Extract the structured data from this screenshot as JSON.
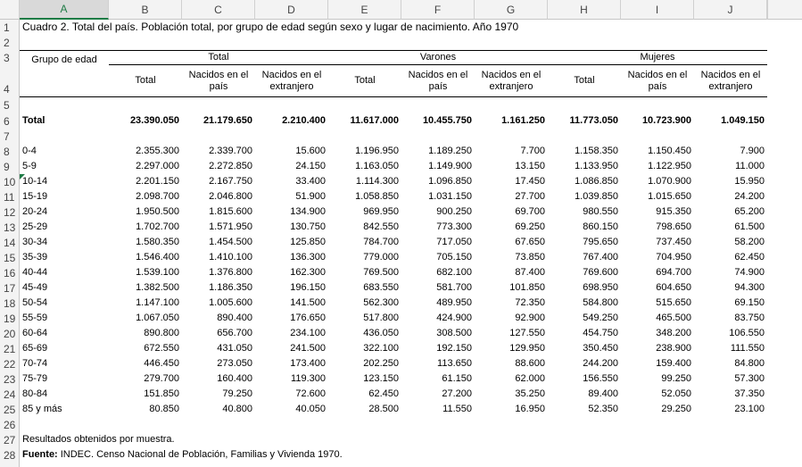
{
  "column_letters": [
    "A",
    "B",
    "C",
    "D",
    "E",
    "F",
    "G",
    "H",
    "I",
    "J"
  ],
  "row_numbers": [
    1,
    2,
    3,
    4,
    5,
    6,
    7,
    8,
    9,
    10,
    11,
    12,
    13,
    14,
    15,
    16,
    17,
    18,
    19,
    20,
    21,
    22,
    23,
    24,
    25,
    26,
    27,
    28
  ],
  "title": "Cuadro 2. Total del país. Población total, por grupo de edad según sexo y lugar de nacimiento. Año 1970",
  "table": {
    "row_header_label": "Grupo de edad",
    "groups": [
      "Total",
      "Varones",
      "Mujeres"
    ],
    "subheaders": [
      "Total",
      "Nacidos en el país",
      "Nacidos en el extranjero",
      "Total",
      "Nacidos en el país",
      "Nacidos en el extranjero",
      "Total",
      "Nacidos en el país",
      "Nacidos en el extranjero"
    ],
    "total_row": [
      "Total",
      "23.390.050",
      "21.179.650",
      "2.210.400",
      "11.617.000",
      "10.455.750",
      "1.161.250",
      "11.773.050",
      "10.723.900",
      "1.049.150"
    ],
    "rows": [
      [
        "0-4",
        "2.355.300",
        "2.339.700",
        "15.600",
        "1.196.950",
        "1.189.250",
        "7.700",
        "1.158.350",
        "1.150.450",
        "7.900"
      ],
      [
        "5-9",
        "2.297.000",
        "2.272.850",
        "24.150",
        "1.163.050",
        "1.149.900",
        "13.150",
        "1.133.950",
        "1.122.950",
        "11.000"
      ],
      [
        "10-14",
        "2.201.150",
        "2.167.750",
        "33.400",
        "1.114.300",
        "1.096.850",
        "17.450",
        "1.086.850",
        "1.070.900",
        "15.950"
      ],
      [
        "15-19",
        "2.098.700",
        "2.046.800",
        "51.900",
        "1.058.850",
        "1.031.150",
        "27.700",
        "1.039.850",
        "1.015.650",
        "24.200"
      ],
      [
        "20-24",
        "1.950.500",
        "1.815.600",
        "134.900",
        "969.950",
        "900.250",
        "69.700",
        "980.550",
        "915.350",
        "65.200"
      ],
      [
        "25-29",
        "1.702.700",
        "1.571.950",
        "130.750",
        "842.550",
        "773.300",
        "69.250",
        "860.150",
        "798.650",
        "61.500"
      ],
      [
        "30-34",
        "1.580.350",
        "1.454.500",
        "125.850",
        "784.700",
        "717.050",
        "67.650",
        "795.650",
        "737.450",
        "58.200"
      ],
      [
        "35-39",
        "1.546.400",
        "1.410.100",
        "136.300",
        "779.000",
        "705.150",
        "73.850",
        "767.400",
        "704.950",
        "62.450"
      ],
      [
        "40-44",
        "1.539.100",
        "1.376.800",
        "162.300",
        "769.500",
        "682.100",
        "87.400",
        "769.600",
        "694.700",
        "74.900"
      ],
      [
        "45-49",
        "1.382.500",
        "1.186.350",
        "196.150",
        "683.550",
        "581.700",
        "101.850",
        "698.950",
        "604.650",
        "94.300"
      ],
      [
        "50-54",
        "1.147.100",
        "1.005.600",
        "141.500",
        "562.300",
        "489.950",
        "72.350",
        "584.800",
        "515.650",
        "69.150"
      ],
      [
        "55-59",
        "1.067.050",
        "890.400",
        "176.650",
        "517.800",
        "424.900",
        "92.900",
        "549.250",
        "465.500",
        "83.750"
      ],
      [
        "60-64",
        "890.800",
        "656.700",
        "234.100",
        "436.050",
        "308.500",
        "127.550",
        "454.750",
        "348.200",
        "106.550"
      ],
      [
        "65-69",
        "672.550",
        "431.050",
        "241.500",
        "322.100",
        "192.150",
        "129.950",
        "350.450",
        "238.900",
        "111.550"
      ],
      [
        "70-74",
        "446.450",
        "273.050",
        "173.400",
        "202.250",
        "113.650",
        "88.600",
        "244.200",
        "159.400",
        "84.800"
      ],
      [
        "75-79",
        "279.700",
        "160.400",
        "119.300",
        "123.150",
        "61.150",
        "62.000",
        "156.550",
        "99.250",
        "57.300"
      ],
      [
        "80-84",
        "151.850",
        "79.250",
        "72.600",
        "62.450",
        "27.200",
        "35.250",
        "89.400",
        "52.050",
        "37.350"
      ],
      [
        "85 y más",
        "80.850",
        "40.800",
        "40.050",
        "28.500",
        "11.550",
        "16.950",
        "52.350",
        "29.250",
        "23.100"
      ]
    ]
  },
  "note": "Resultados obtenidos por muestra.",
  "source": {
    "label": "Fuente:",
    "text": "INDEC. Censo Nacional de Población, Familias y Vivienda 1970."
  }
}
